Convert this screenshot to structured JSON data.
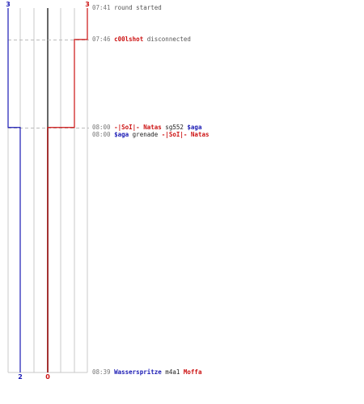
{
  "chart_data": {
    "type": "line",
    "title": "",
    "xlabel": "",
    "ylabel": "",
    "colors": {
      "blue": "#1a1ab4",
      "red": "#cc1111",
      "grid": "#c8c8c8",
      "divider": "#666666",
      "dash": "#bbbbbb"
    },
    "series": [
      {
        "side": "blue",
        "start_label": "3",
        "end_label": "2",
        "steps": [
          {
            "time": "07:41",
            "value": 3
          },
          {
            "time": "08:00",
            "value": 2
          },
          {
            "time": "08:39",
            "value": 2
          }
        ]
      },
      {
        "side": "red",
        "start_label": "3",
        "end_label": "0",
        "steps": [
          {
            "time": "07:41",
            "value": 3
          },
          {
            "time": "07:46",
            "value": 2
          },
          {
            "time": "08:00",
            "value": 0
          },
          {
            "time": "08:39",
            "value": 0
          }
        ]
      }
    ],
    "events": [
      {
        "time": "07:41",
        "parts": [
          {
            "text": "round started",
            "style": "plain"
          }
        ]
      },
      {
        "time": "07:46",
        "parts": [
          {
            "text": "c00lshot",
            "style": "red"
          },
          {
            "text": " disconnected",
            "style": "plain"
          }
        ]
      },
      {
        "time": "08:00",
        "parts": [
          {
            "text": "-|SoI|- Natas",
            "style": "red"
          },
          {
            "text": " sg552 ",
            "style": "w"
          },
          {
            "text": "$aga",
            "style": "blue"
          }
        ]
      },
      {
        "time": "08:00",
        "parts": [
          {
            "text": "$aga",
            "style": "blue"
          },
          {
            "text": " grenade ",
            "style": "w"
          },
          {
            "text": "-|SoI|- Natas",
            "style": "red"
          }
        ]
      },
      {
        "time": "08:39",
        "parts": [
          {
            "text": "Wasserspritze",
            "style": "blue"
          },
          {
            "text": " m4a1 ",
            "style": "w"
          },
          {
            "text": "Moffa",
            "style": "red"
          }
        ]
      }
    ]
  }
}
